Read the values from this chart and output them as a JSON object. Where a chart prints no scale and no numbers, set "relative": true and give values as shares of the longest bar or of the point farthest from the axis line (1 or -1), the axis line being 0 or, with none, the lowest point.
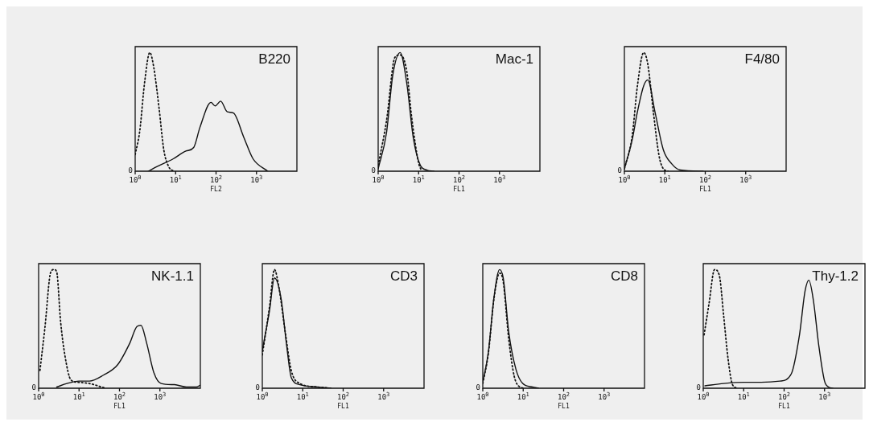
{
  "chart_data": [
    {
      "type": "line",
      "title": "B220",
      "xlabel": "FL2",
      "relative": true,
      "log": "x",
      "xlim": [
        1,
        10000
      ],
      "xticks": [
        {
          "value": 1,
          "label": "10$^{0}$"
        },
        {
          "value": 10,
          "label": "10$^{1}$"
        },
        {
          "value": 100,
          "label": "10$^{2}$"
        },
        {
          "value": 1000,
          "label": "10$^{3}$"
        }
      ],
      "annotations": [
        "0"
      ],
      "series": [
        {
          "color": "#111111",
          "line_style": "dotted",
          "x": [
            1,
            1.3,
            1.7,
            2.3,
            2.9,
            3.9,
            5.1,
            6.7,
            8.8
          ],
          "values": [
            0.14,
            0.34,
            0.74,
            1,
            0.87,
            0.53,
            0.18,
            0.04,
            0
          ]
        },
        {
          "color": "#111111",
          "line_style": "solid",
          "x": [
            2.1,
            3.5,
            8.8,
            18,
            28,
            40,
            75,
            95,
            130,
            190,
            270,
            480,
            820,
            1900
          ],
          "values": [
            0,
            0.04,
            0.105,
            0.17,
            0.2,
            0.37,
            0.58,
            0.55,
            0.59,
            0.5,
            0.49,
            0.29,
            0.105,
            0
          ]
        }
      ]
    },
    {
      "type": "line",
      "title": "Mac-1",
      "xlabel": "FL1",
      "relative": true,
      "log": "x",
      "xlim": [
        1,
        10000
      ],
      "xticks": [
        {
          "value": 1,
          "label": "10$^{0}$"
        },
        {
          "value": 10,
          "label": "10$^{1}$"
        },
        {
          "value": 100,
          "label": "10$^{2}$"
        },
        {
          "value": 1000,
          "label": "10$^{3}$"
        }
      ],
      "annotations": [
        "0"
      ],
      "series": [
        {
          "color": "#111111",
          "line_style": "dotted",
          "x": [
            1,
            1.6,
            2.6,
            3.5,
            5.1,
            6.7,
            10,
            12
          ],
          "values": [
            0.05,
            0.42,
            0.96,
            0.98,
            0.84,
            0.46,
            0.07,
            0
          ]
        },
        {
          "color": "#111111",
          "line_style": "solid",
          "x": [
            1,
            1.6,
            2.3,
            3.5,
            5.1,
            7.4,
            11,
            16,
            24
          ],
          "values": [
            0.02,
            0.32,
            0.81,
            1,
            0.74,
            0.28,
            0.05,
            0.01,
            0
          ]
        }
      ]
    },
    {
      "type": "line",
      "title": "F4/80",
      "xlabel": "FL1",
      "relative": true,
      "log": "x",
      "xlim": [
        1,
        10000
      ],
      "xticks": [
        {
          "value": 1,
          "label": "10$^{0}$"
        },
        {
          "value": 10,
          "label": "10$^{1}$"
        },
        {
          "value": 100,
          "label": "10$^{2}$"
        },
        {
          "value": 1000,
          "label": "10$^{3}$"
        }
      ],
      "annotations": [
        "0"
      ],
      "series": [
        {
          "color": "#111111",
          "line_style": "dotted",
          "x": [
            1,
            1.55,
            2.1,
            3,
            3.8,
            5.2,
            7.2,
            9.2,
            12
          ],
          "values": [
            0.02,
            0.29,
            0.72,
            1,
            0.9,
            0.5,
            0.13,
            0.02,
            0
          ]
        },
        {
          "color": "#111111",
          "line_style": "solid",
          "x": [
            1,
            1.55,
            2.1,
            3,
            3.8,
            5.7,
            9.2,
            15,
            24,
            89
          ],
          "values": [
            0.02,
            0.26,
            0.5,
            0.72,
            0.77,
            0.5,
            0.18,
            0.06,
            0.01,
            0
          ]
        }
      ]
    },
    {
      "type": "line",
      "title": "NK-1.1",
      "xlabel": "FL1",
      "relative": true,
      "log": "x",
      "xlim": [
        1,
        10000
      ],
      "xticks": [
        {
          "value": 1,
          "label": "10$^{0}$"
        },
        {
          "value": 10,
          "label": "10$^{1}$"
        },
        {
          "value": 100,
          "label": "10$^{2}$"
        },
        {
          "value": 1000,
          "label": "10$^{3}$"
        }
      ],
      "annotations": [
        "0"
      ],
      "series": [
        {
          "color": "#111111",
          "line_style": "dotted",
          "x": [
            1.08,
            1.43,
            2,
            2.4,
            2.8,
            3.5,
            4.5,
            6.3,
            9.5,
            18,
            36,
            45
          ],
          "values": [
            0.15,
            0.51,
            0.98,
            1,
            0.98,
            0.56,
            0.27,
            0.07,
            0.05,
            0.04,
            0.01,
            0
          ]
        },
        {
          "color": "#111111",
          "line_style": "solid",
          "x": [
            2.8,
            5,
            10,
            18,
            40,
            91,
            180,
            270,
            340,
            470,
            710,
            1070,
            2300,
            4500,
            8000,
            10000
          ],
          "values": [
            0.01,
            0.04,
            0.06,
            0.06,
            0.11,
            0.2,
            0.38,
            0.52,
            0.53,
            0.38,
            0.13,
            0.04,
            0.03,
            0.01,
            0.01,
            0.025
          ]
        }
      ]
    },
    {
      "type": "line",
      "title": "CD3",
      "xlabel": "FL1",
      "relative": true,
      "log": "x",
      "xlim": [
        1,
        10000
      ],
      "xticks": [
        {
          "value": 1,
          "label": "10$^{0}$"
        },
        {
          "value": 10,
          "label": "10$^{1}$"
        },
        {
          "value": 100,
          "label": "10$^{2}$"
        },
        {
          "value": 1000,
          "label": "10$^{3}$"
        }
      ],
      "annotations": [
        "0"
      ],
      "series": [
        {
          "color": "#111111",
          "line_style": "dotted",
          "x": [
            1,
            1.5,
            2,
            2.6,
            3.7,
            5.2,
            8.5,
            23,
            50
          ],
          "values": [
            0.28,
            0.68,
            1,
            0.84,
            0.47,
            0.15,
            0.04,
            0.01,
            0
          ]
        },
        {
          "color": "#111111",
          "line_style": "solid",
          "x": [
            1,
            1.5,
            2,
            2.9,
            4,
            5.2,
            8.5,
            23,
            50
          ],
          "values": [
            0.32,
            0.65,
            0.93,
            0.76,
            0.36,
            0.09,
            0.03,
            0.01,
            0
          ]
        }
      ]
    },
    {
      "type": "line",
      "title": "CD8",
      "xlabel": "FL1",
      "relative": true,
      "log": "x",
      "xlim": [
        1,
        10000
      ],
      "xticks": [
        {
          "value": 1,
          "label": "10$^{0}$"
        },
        {
          "value": 10,
          "label": "10$^{1}$"
        },
        {
          "value": 100,
          "label": "10$^{2}$"
        },
        {
          "value": 1000,
          "label": "10$^{3}$"
        }
      ],
      "annotations": [
        "0"
      ],
      "series": [
        {
          "color": "#111111",
          "line_style": "dotted",
          "x": [
            1,
            1.37,
            1.9,
            2.6,
            3.2,
            4.4,
            6,
            8.3,
            11
          ],
          "values": [
            0.04,
            0.29,
            0.76,
            0.97,
            0.9,
            0.41,
            0.1,
            0.01,
            0
          ]
        },
        {
          "color": "#111111",
          "line_style": "solid",
          "x": [
            1,
            1.37,
            1.9,
            2.6,
            3.2,
            4.4,
            6.6,
            9.7,
            17,
            24
          ],
          "values": [
            0.05,
            0.3,
            0.77,
            1,
            0.93,
            0.47,
            0.16,
            0.04,
            0.01,
            0
          ]
        }
      ]
    },
    {
      "type": "line",
      "title": "Thy-1.2",
      "xlabel": "FL1",
      "relative": true,
      "log": "x",
      "xlim": [
        1,
        10000
      ],
      "xticks": [
        {
          "value": 1,
          "label": "10$^{0}$"
        },
        {
          "value": 10,
          "label": "10$^{1}$"
        },
        {
          "value": 100,
          "label": "10$^{2}$"
        },
        {
          "value": 1000,
          "label": "10$^{3}$"
        }
      ],
      "annotations": [
        "0"
      ],
      "series": [
        {
          "color": "#111111",
          "line_style": "dotted",
          "x": [
            1.05,
            1.4,
            1.9,
            2.5,
            3.2,
            4.1,
            5.3,
            7
          ],
          "values": [
            0.45,
            0.72,
            1,
            0.95,
            0.61,
            0.25,
            0.03,
            0
          ]
        },
        {
          "color": "#111111",
          "line_style": "solid",
          "x": [
            1.1,
            3.2,
            10,
            27,
            79,
            150,
            240,
            330,
            410,
            530,
            720,
            1000,
            1260,
            1600
          ],
          "values": [
            0.02,
            0.04,
            0.05,
            0.05,
            0.06,
            0.12,
            0.45,
            0.82,
            0.91,
            0.74,
            0.36,
            0.06,
            0.01,
            0
          ]
        }
      ]
    }
  ]
}
